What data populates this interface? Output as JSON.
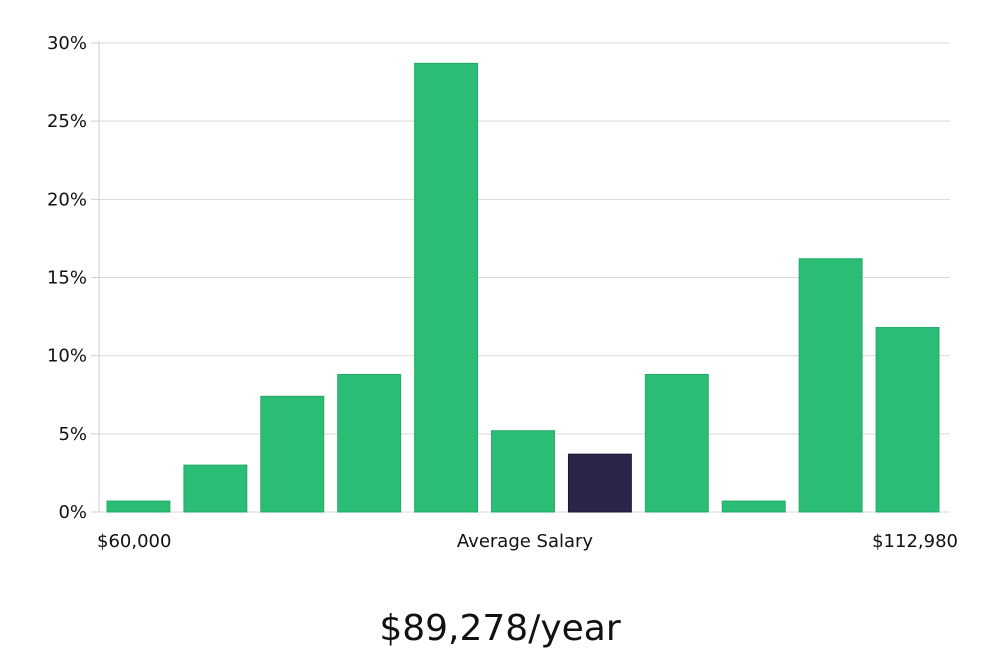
{
  "chart_data": {
    "type": "bar",
    "categories": [
      "1",
      "2",
      "3",
      "4",
      "5",
      "6",
      "7",
      "8",
      "9",
      "10",
      "11"
    ],
    "values": [
      0.7,
      3.0,
      7.4,
      8.8,
      28.7,
      5.2,
      3.7,
      8.8,
      0.7,
      16.2,
      11.8
    ],
    "highlight_index": 6,
    "ylim": [
      0,
      30
    ],
    "yticks": [
      "0%",
      "5%",
      "10%",
      "15%",
      "20%",
      "25%",
      "30%"
    ],
    "x_axis": {
      "left_label": "$60,000",
      "center_label": "Average Salary",
      "right_label": "$112,980"
    },
    "grid": true,
    "colors": {
      "bar": "#2bbd76",
      "highlight": "#2a2649",
      "grid": "#d9d9d9"
    }
  },
  "summary": {
    "salary_text": "$89,278/year"
  }
}
